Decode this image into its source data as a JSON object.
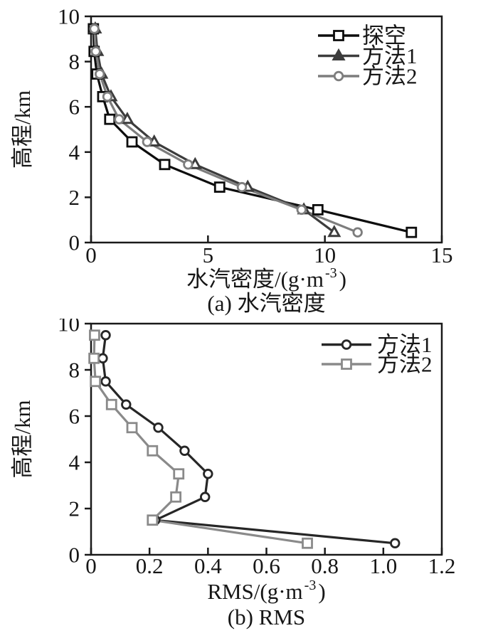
{
  "figure_background": "#ffffff",
  "text_color": "#161616",
  "axis_color": "#1a1a1a",
  "chart_data": [
    {
      "id": "a",
      "type": "line",
      "caption": "(a) 水汽密度",
      "xlabel": {
        "prefix": "水汽密度/(g·m",
        "sup": "-3",
        "suffix": ")"
      },
      "ylabel": "高程/km",
      "xlim": [
        0,
        15
      ],
      "ylim": [
        0,
        10
      ],
      "grid": "off",
      "legend_position": "upper right",
      "x_ticks": [
        {
          "v": 0,
          "label": "0"
        },
        {
          "v": 5,
          "label": "5"
        },
        {
          "v": 10,
          "label": "10"
        },
        {
          "v": 15,
          "label": "15"
        }
      ],
      "y_ticks": [
        {
          "v": 0,
          "label": "0"
        },
        {
          "v": 2,
          "label": "2"
        },
        {
          "v": 4,
          "label": "4"
        },
        {
          "v": 6,
          "label": "6"
        },
        {
          "v": 8,
          "label": "8"
        },
        {
          "v": 10,
          "label": "10"
        }
      ],
      "series": [
        {
          "name": "探空",
          "marker": "square",
          "color": "#0d0d0d",
          "legend_marker_fill": "open",
          "points": [
            [
              13.7,
              0.45
            ],
            [
              9.7,
              1.45
            ],
            [
              5.5,
              2.45
            ],
            [
              3.15,
              3.45
            ],
            [
              1.75,
              4.45
            ],
            [
              0.8,
              5.45
            ],
            [
              0.5,
              6.45
            ],
            [
              0.25,
              7.45
            ],
            [
              0.13,
              8.45
            ],
            [
              0.1,
              9.45
            ]
          ]
        },
        {
          "name": "方法1",
          "marker": "triangle",
          "color": "#3c3c3c",
          "legend_marker_fill": "solid",
          "points": [
            [
              10.4,
              0.45
            ],
            [
              9.1,
              1.45
            ],
            [
              6.7,
              2.45
            ],
            [
              4.45,
              3.45
            ],
            [
              2.7,
              4.45
            ],
            [
              1.55,
              5.45
            ],
            [
              0.85,
              6.45
            ],
            [
              0.45,
              7.45
            ],
            [
              0.27,
              8.45
            ],
            [
              0.18,
              9.45
            ]
          ]
        },
        {
          "name": "方法2",
          "marker": "circle",
          "color": "#7d7d7d",
          "legend_marker_fill": "open",
          "points": [
            [
              11.4,
              0.45
            ],
            [
              9.0,
              1.45
            ],
            [
              6.45,
              2.45
            ],
            [
              4.15,
              3.45
            ],
            [
              2.4,
              4.45
            ],
            [
              1.2,
              5.45
            ],
            [
              0.7,
              6.45
            ],
            [
              0.37,
              7.45
            ],
            [
              0.2,
              8.45
            ],
            [
              0.14,
              9.45
            ]
          ]
        }
      ]
    },
    {
      "id": "b",
      "type": "line",
      "caption": "(b) RMS",
      "xlabel": {
        "prefix": "RMS/(g·m",
        "sup": "-3",
        "suffix": ")"
      },
      "ylabel": "高程/km",
      "xlim": [
        0,
        1.2
      ],
      "ylim": [
        0,
        10
      ],
      "grid": "off",
      "legend_position": "upper right",
      "x_ticks": [
        {
          "v": 0,
          "label": "0"
        },
        {
          "v": 0.2,
          "label": "0.2"
        },
        {
          "v": 0.4,
          "label": "0.4"
        },
        {
          "v": 0.6,
          "label": "0.6"
        },
        {
          "v": 0.8,
          "label": "0.8"
        },
        {
          "v": 1.0,
          "label": "1.0"
        },
        {
          "v": 1.2,
          "label": "1.2"
        }
      ],
      "y_ticks": [
        {
          "v": 0,
          "label": "0"
        },
        {
          "v": 2,
          "label": "2"
        },
        {
          "v": 4,
          "label": "4"
        },
        {
          "v": 6,
          "label": "6"
        },
        {
          "v": 8,
          "label": "8"
        },
        {
          "v": 10,
          "label": "10"
        }
      ],
      "series": [
        {
          "name": "方法1",
          "marker": "circle",
          "color": "#262626",
          "legend_marker_fill": "open",
          "points": [
            [
              1.04,
              0.5
            ],
            [
              0.22,
              1.5
            ],
            [
              0.39,
              2.5
            ],
            [
              0.4,
              3.5
            ],
            [
              0.32,
              4.5
            ],
            [
              0.23,
              5.5
            ],
            [
              0.12,
              6.5
            ],
            [
              0.05,
              7.5
            ],
            [
              0.04,
              8.5
            ],
            [
              0.05,
              9.5
            ]
          ]
        },
        {
          "name": "方法2",
          "marker": "square",
          "color": "#8a8a8a",
          "legend_marker_fill": "open",
          "points": [
            [
              0.74,
              0.5
            ],
            [
              0.21,
              1.5
            ],
            [
              0.29,
              2.5
            ],
            [
              0.3,
              3.5
            ],
            [
              0.21,
              4.5
            ],
            [
              0.14,
              5.5
            ],
            [
              0.07,
              6.5
            ],
            [
              0.015,
              7.5
            ],
            [
              0.01,
              8.5
            ],
            [
              0.012,
              9.5
            ]
          ]
        }
      ]
    }
  ]
}
